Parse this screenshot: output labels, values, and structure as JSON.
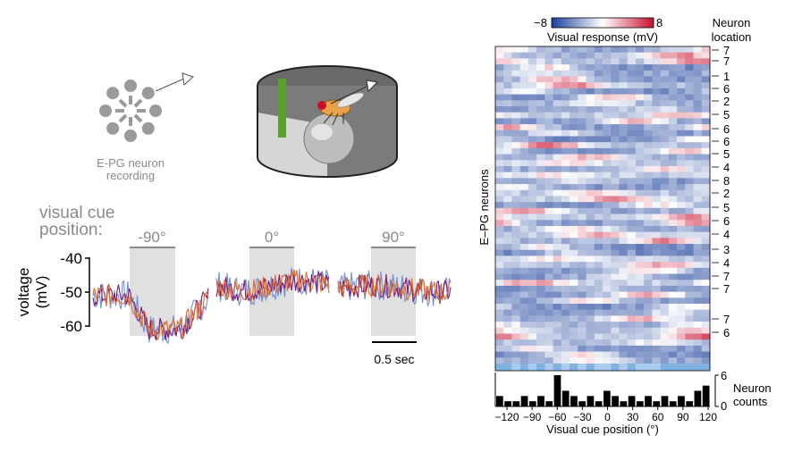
{
  "left_panel": {
    "recording_label_line1": "E-PG neuron",
    "recording_label_line2": "recording",
    "cue_title_line1": "visual cue",
    "cue_title_line2": "position:",
    "positions": [
      "-90°",
      "0°",
      "90°"
    ],
    "ylabel_line1": "voltage",
    "ylabel_line2": "(mV)",
    "yticks": [
      "-40",
      "-50",
      "-60"
    ],
    "scalebar_label": "0.5 sec"
  },
  "right_panel": {
    "colorbar_min": "−8",
    "colorbar_max": "8",
    "colorbar_label": "Visual response (mV)",
    "location_title_line1": "Neuron",
    "location_title_line2": "location",
    "heatmap_ylabel": "E–PG neurons",
    "location_labels": [
      "7",
      "7",
      "1",
      "6",
      "2",
      "5",
      "6",
      "6",
      "5",
      "4",
      "8",
      "2",
      "5",
      "6",
      "4",
      "3",
      "4",
      "7",
      "7",
      "7",
      "6"
    ],
    "hist_ytick_top": "6",
    "hist_ytick_bottom": "0",
    "hist_label_line1": "Neuron",
    "hist_label_line2": "counts",
    "xticks": [
      "−120",
      "−90",
      "−60",
      "−30",
      "0",
      "30",
      "60",
      "90",
      "120"
    ],
    "xlabel": "Visual cue position (°)"
  },
  "colors": {
    "cue_shade": "#e0e0e0",
    "trace_blue": "#6f8fd6",
    "trace_purple": "#7a1a78",
    "trace_orange": "#e06a2a",
    "arena_green": "#5aa02c",
    "heat_neg": "#1a3f9a",
    "heat_pos": "#c8102e"
  },
  "chart_data": {
    "type": "bar",
    "title": "Neuron counts",
    "xlabel": "Visual cue position (°)",
    "ylabel": "Neuron counts",
    "ylim": [
      0,
      6
    ],
    "x": [
      -120,
      -110,
      -100,
      -90,
      -80,
      -70,
      -60,
      -50,
      -40,
      -30,
      -20,
      -10,
      0,
      10,
      20,
      30,
      40,
      50,
      60,
      70,
      80,
      90,
      100,
      110,
      120,
      130
    ],
    "values": [
      2,
      1,
      1,
      2,
      1,
      2,
      1,
      6,
      3,
      2,
      1,
      2,
      1,
      3,
      2,
      1,
      2,
      1,
      2,
      1,
      2,
      1,
      2,
      1,
      3,
      4
    ]
  }
}
